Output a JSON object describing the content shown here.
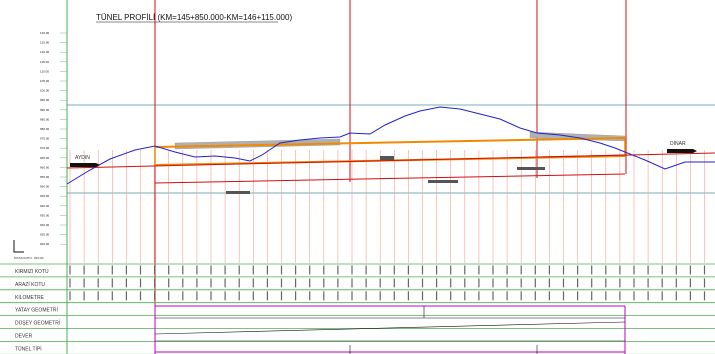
{
  "title": "TÜNEL PROFİLİ (KM=145+850.000-KM=146+115.000)",
  "places": {
    "left": "AYDIN",
    "right": "DİNAR"
  },
  "scale_label": "KIYAS KOTU : 810.00",
  "elevation_ticks": [
    "130.00",
    "125.00",
    "120.00",
    "115.00",
    "110.00",
    "105.00",
    "100.00",
    "995.00",
    "990.00",
    "985.00",
    "980.00",
    "975.00",
    "970.00",
    "965.00",
    "960.00",
    "955.00",
    "950.00",
    "945.00",
    "940.00",
    "935.00",
    "930.00",
    "925.00",
    "920.00"
  ],
  "rows": [
    {
      "key": "kirmizi",
      "label": "KIRMIZI KOTU"
    },
    {
      "key": "arazi",
      "label": "ARAZİ KOTU"
    },
    {
      "key": "kilometre",
      "label": "KİLOMETRE"
    },
    {
      "key": "yatay",
      "label": "YATAY GEOMETRİ"
    },
    {
      "key": "dusey",
      "label": "DÜŞEY GEOMETRİ"
    },
    {
      "key": "dever",
      "label": "DEVER"
    },
    {
      "key": "tunel",
      "label": "TÜNEL TİPİ"
    }
  ],
  "colors": {
    "grid_green": "#4caf50",
    "ground": "#2222cc",
    "red": "#d01010",
    "orange": "#f08a00",
    "pink": "#f2a090",
    "magenta": "#c000c0",
    "steel": "#4a90a4"
  }
}
